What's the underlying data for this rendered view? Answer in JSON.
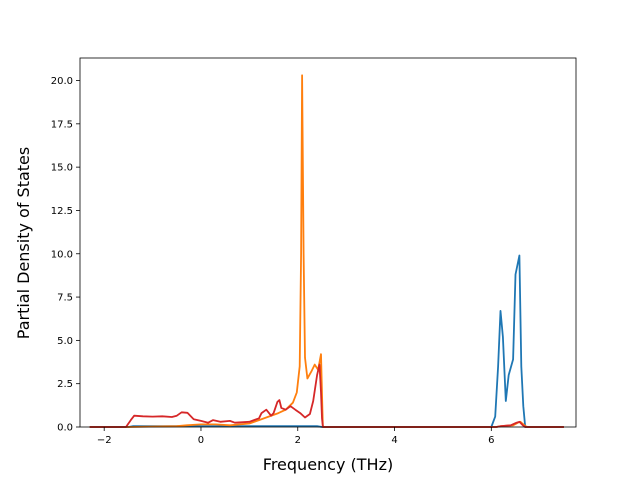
{
  "chart_data": {
    "type": "line",
    "title": "",
    "xlabel": "Frequency (THz)",
    "ylabel": "Partial Density of States",
    "xlim": [
      -2.5,
      7.75
    ],
    "ylim": [
      0,
      21.3
    ],
    "xticks": [
      -2,
      0,
      2,
      4,
      6
    ],
    "xtick_labels": [
      "−2",
      "0",
      "2",
      "4",
      "6"
    ],
    "yticks": [
      0.0,
      2.5,
      5.0,
      7.5,
      10.0,
      12.5,
      15.0,
      17.5,
      20.0
    ],
    "ytick_labels": [
      "0.0",
      "2.5",
      "5.0",
      "7.5",
      "10.0",
      "12.5",
      "15.0",
      "17.5",
      "20.0"
    ],
    "grid": false,
    "legend": "none",
    "series": [
      {
        "color": "#1f77b4",
        "points": [
          [
            -2.3,
            0
          ],
          [
            -1.5,
            0
          ],
          [
            -1.4,
            0.05
          ],
          [
            0,
            0.05
          ],
          [
            2.0,
            0.05
          ],
          [
            2.4,
            0.05
          ],
          [
            2.5,
            0
          ],
          [
            6.0,
            0
          ],
          [
            6.08,
            0.6
          ],
          [
            6.14,
            3.5
          ],
          [
            6.19,
            6.7
          ],
          [
            6.24,
            5.2
          ],
          [
            6.3,
            1.5
          ],
          [
            6.36,
            3.0
          ],
          [
            6.45,
            3.9
          ],
          [
            6.5,
            8.8
          ],
          [
            6.58,
            9.9
          ],
          [
            6.62,
            3.5
          ],
          [
            6.66,
            1.2
          ],
          [
            6.7,
            0
          ],
          [
            7.5,
            0
          ]
        ]
      },
      {
        "color": "#ff7f0e",
        "points": [
          [
            -2.3,
            0
          ],
          [
            -1.5,
            0
          ],
          [
            -0.5,
            0.05
          ],
          [
            -0.3,
            0.1
          ],
          [
            0,
            0.15
          ],
          [
            0.3,
            0.15
          ],
          [
            0.6,
            0.1
          ],
          [
            1.0,
            0.2
          ],
          [
            1.2,
            0.4
          ],
          [
            1.4,
            0.6
          ],
          [
            1.6,
            0.8
          ],
          [
            1.75,
            1.0
          ],
          [
            1.9,
            1.4
          ],
          [
            1.98,
            2.0
          ],
          [
            2.04,
            3.5
          ],
          [
            2.07,
            10.0
          ],
          [
            2.09,
            20.3
          ],
          [
            2.12,
            10.0
          ],
          [
            2.15,
            4.0
          ],
          [
            2.2,
            2.8
          ],
          [
            2.28,
            3.2
          ],
          [
            2.35,
            3.6
          ],
          [
            2.42,
            3.3
          ],
          [
            2.48,
            4.2
          ],
          [
            2.51,
            1.0
          ],
          [
            2.52,
            0
          ],
          [
            6.1,
            0
          ],
          [
            6.2,
            0.05
          ],
          [
            6.45,
            0.1
          ],
          [
            6.55,
            0.25
          ],
          [
            6.6,
            0.3
          ],
          [
            6.7,
            0.05
          ],
          [
            6.75,
            0
          ],
          [
            7.5,
            0
          ]
        ]
      },
      {
        "color": "#d62728",
        "points": [
          [
            -2.3,
            0
          ],
          [
            -1.55,
            0
          ],
          [
            -1.45,
            0.4
          ],
          [
            -1.38,
            0.65
          ],
          [
            -1.2,
            0.62
          ],
          [
            -1.0,
            0.6
          ],
          [
            -0.8,
            0.62
          ],
          [
            -0.6,
            0.58
          ],
          [
            -0.5,
            0.65
          ],
          [
            -0.4,
            0.85
          ],
          [
            -0.28,
            0.82
          ],
          [
            -0.15,
            0.45
          ],
          [
            0,
            0.35
          ],
          [
            0.15,
            0.25
          ],
          [
            0.25,
            0.4
          ],
          [
            0.4,
            0.3
          ],
          [
            0.6,
            0.35
          ],
          [
            0.7,
            0.25
          ],
          [
            1.0,
            0.3
          ],
          [
            1.2,
            0.5
          ],
          [
            1.25,
            0.8
          ],
          [
            1.35,
            1.0
          ],
          [
            1.45,
            0.65
          ],
          [
            1.5,
            0.8
          ],
          [
            1.58,
            1.45
          ],
          [
            1.62,
            1.55
          ],
          [
            1.66,
            1.1
          ],
          [
            1.75,
            1.0
          ],
          [
            1.85,
            1.2
          ],
          [
            1.95,
            1.0
          ],
          [
            2.05,
            0.8
          ],
          [
            2.15,
            0.55
          ],
          [
            2.25,
            0.75
          ],
          [
            2.32,
            1.5
          ],
          [
            2.4,
            3.0
          ],
          [
            2.45,
            3.6
          ],
          [
            2.48,
            2.0
          ],
          [
            2.5,
            0.5
          ],
          [
            2.52,
            0
          ],
          [
            6.1,
            0
          ],
          [
            6.2,
            0.05
          ],
          [
            6.4,
            0.1
          ],
          [
            6.52,
            0.25
          ],
          [
            6.58,
            0.3
          ],
          [
            6.65,
            0.1
          ],
          [
            6.7,
            0
          ],
          [
            7.5,
            0
          ]
        ]
      }
    ]
  }
}
